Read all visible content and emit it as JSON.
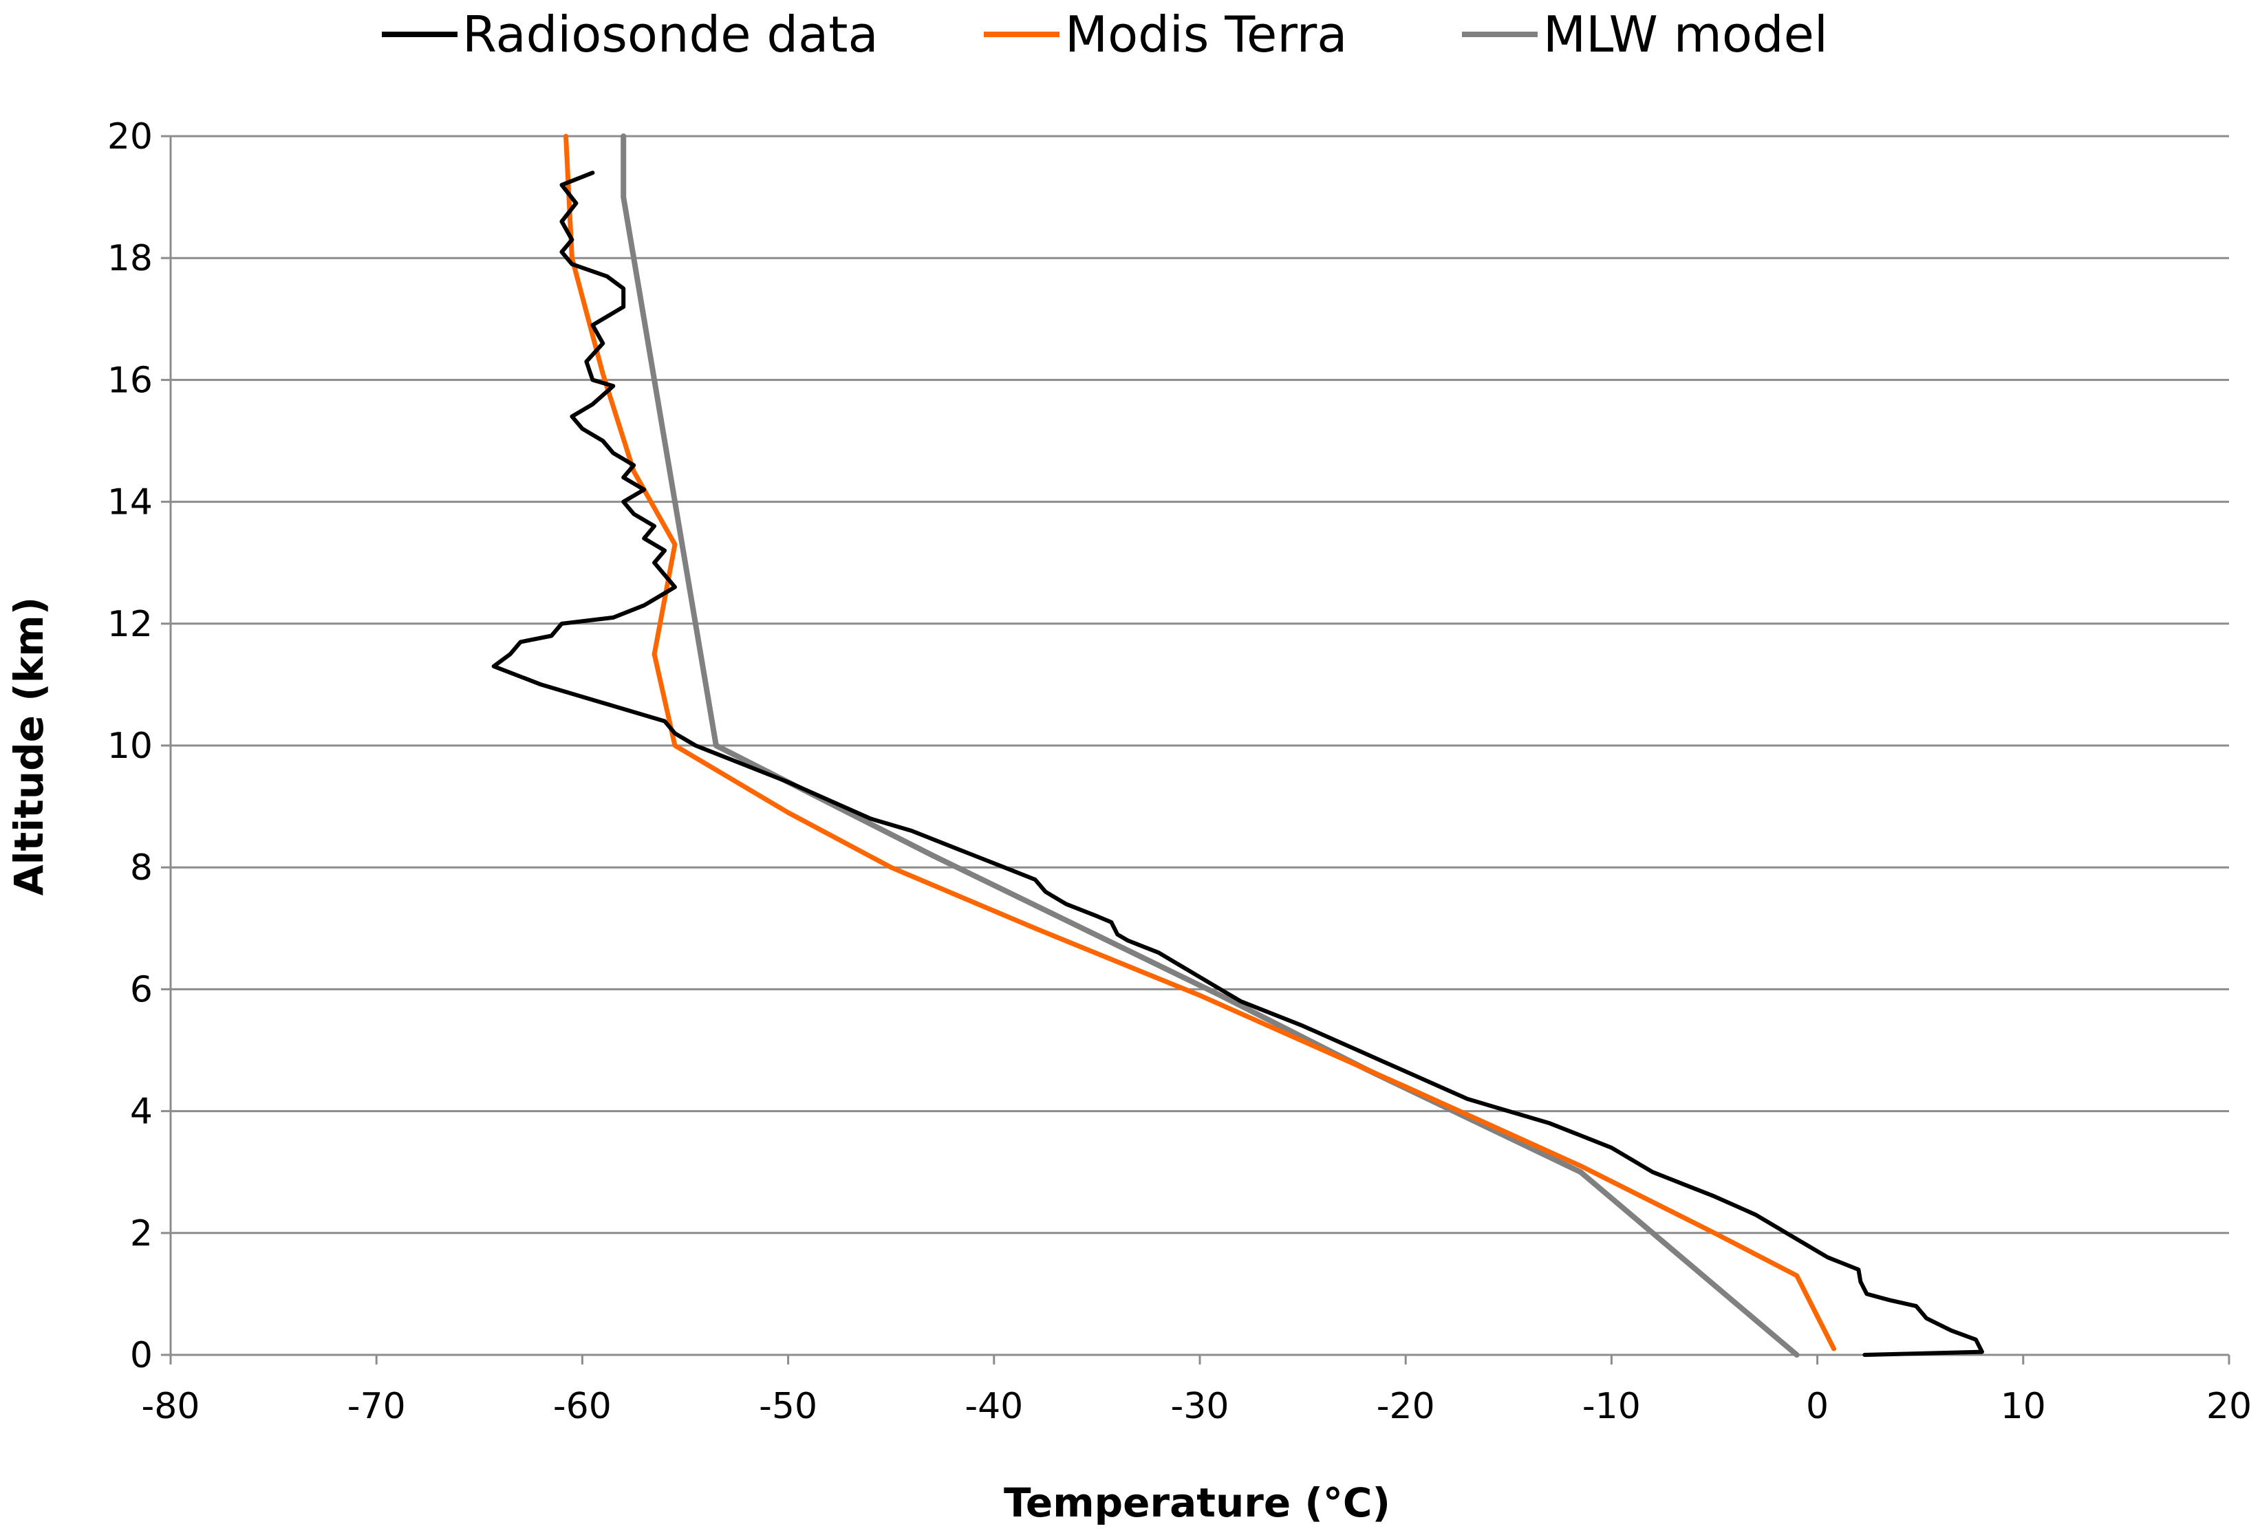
{
  "chart_data": {
    "type": "line",
    "title": "",
    "xlabel": "Temperature (°C)",
    "ylabel": "Altitude  (km)",
    "xlim": [
      -80,
      20
    ],
    "ylim": [
      0,
      20
    ],
    "x_ticks": [
      -80,
      -70,
      -60,
      -50,
      -40,
      -30,
      -20,
      -10,
      0,
      10,
      20
    ],
    "y_ticks": [
      0,
      2,
      4,
      6,
      8,
      10,
      12,
      14,
      16,
      18,
      20
    ],
    "grid": "horizontal",
    "legend_position": "top",
    "series": [
      {
        "name": "Radiosonde data",
        "color": "#000000",
        "points": [
          [
            2.3,
            0.0
          ],
          [
            8.0,
            0.05
          ],
          [
            7.7,
            0.25
          ],
          [
            6.5,
            0.4
          ],
          [
            5.3,
            0.6
          ],
          [
            4.8,
            0.8
          ],
          [
            3.5,
            0.9
          ],
          [
            2.4,
            1.0
          ],
          [
            2.1,
            1.2
          ],
          [
            2.0,
            1.4
          ],
          [
            0.5,
            1.6
          ],
          [
            -0.5,
            1.8
          ],
          [
            -1.5,
            2.0
          ],
          [
            -3.0,
            2.3
          ],
          [
            -5.0,
            2.6
          ],
          [
            -6.5,
            2.8
          ],
          [
            -8.0,
            3.0
          ],
          [
            -10.0,
            3.4
          ],
          [
            -11.5,
            3.6
          ],
          [
            -13.0,
            3.8
          ],
          [
            -15.0,
            4.0
          ],
          [
            -17.0,
            4.2
          ],
          [
            -19.0,
            4.5
          ],
          [
            -21.0,
            4.8
          ],
          [
            -23.0,
            5.1
          ],
          [
            -25.0,
            5.4
          ],
          [
            -26.5,
            5.6
          ],
          [
            -28.0,
            5.8
          ],
          [
            -29.0,
            6.0
          ],
          [
            -30.0,
            6.2
          ],
          [
            -31.0,
            6.4
          ],
          [
            -32.0,
            6.6
          ],
          [
            -33.5,
            6.8
          ],
          [
            -34.0,
            6.9
          ],
          [
            -34.3,
            7.1
          ],
          [
            -35.0,
            7.2
          ],
          [
            -36.5,
            7.4
          ],
          [
            -37.5,
            7.6
          ],
          [
            -38.0,
            7.8
          ],
          [
            -39.5,
            8.0
          ],
          [
            -41.0,
            8.2
          ],
          [
            -42.5,
            8.4
          ],
          [
            -44.0,
            8.6
          ],
          [
            -46.0,
            8.8
          ],
          [
            -48.0,
            9.1
          ],
          [
            -50.0,
            9.4
          ],
          [
            -53.0,
            9.8
          ],
          [
            -54.5,
            10.0
          ],
          [
            -55.5,
            10.2
          ],
          [
            -56.0,
            10.4
          ],
          [
            -57.0,
            10.5
          ],
          [
            -59.0,
            10.7
          ],
          [
            -62.0,
            11.0
          ],
          [
            -64.3,
            11.3
          ],
          [
            -63.5,
            11.5
          ],
          [
            -63.0,
            11.7
          ],
          [
            -61.5,
            11.8
          ],
          [
            -61.0,
            12.0
          ],
          [
            -58.5,
            12.1
          ],
          [
            -57.0,
            12.3
          ],
          [
            -56.0,
            12.5
          ],
          [
            -55.5,
            12.6
          ],
          [
            -56.0,
            12.8
          ],
          [
            -56.5,
            13.0
          ],
          [
            -56.0,
            13.2
          ],
          [
            -57.0,
            13.4
          ],
          [
            -56.5,
            13.6
          ],
          [
            -57.5,
            13.8
          ],
          [
            -58.0,
            14.0
          ],
          [
            -57.0,
            14.2
          ],
          [
            -58.0,
            14.4
          ],
          [
            -57.5,
            14.6
          ],
          [
            -58.5,
            14.8
          ],
          [
            -59.0,
            15.0
          ],
          [
            -60.0,
            15.2
          ],
          [
            -60.5,
            15.4
          ],
          [
            -59.5,
            15.6
          ],
          [
            -58.5,
            15.9
          ],
          [
            -59.5,
            16.0
          ],
          [
            -59.8,
            16.3
          ],
          [
            -59.0,
            16.6
          ],
          [
            -59.5,
            16.9
          ],
          [
            -58.0,
            17.2
          ],
          [
            -58.0,
            17.5
          ],
          [
            -58.8,
            17.7
          ],
          [
            -60.5,
            17.9
          ],
          [
            -61.0,
            18.1
          ],
          [
            -60.5,
            18.3
          ],
          [
            -61.0,
            18.6
          ],
          [
            -60.3,
            18.9
          ],
          [
            -61.0,
            19.2
          ],
          [
            -59.5,
            19.4
          ]
        ]
      },
      {
        "name": "Modis Terra",
        "color": "#ff6600",
        "points": [
          [
            0.8,
            0.1
          ],
          [
            -1.0,
            1.3
          ],
          [
            -5.0,
            2.0
          ],
          [
            -11.5,
            3.1
          ],
          [
            -20.0,
            4.4
          ],
          [
            -30.0,
            5.9
          ],
          [
            -38.0,
            7.0
          ],
          [
            -45.0,
            8.0
          ],
          [
            -50.0,
            8.9
          ],
          [
            -55.5,
            10.0
          ],
          [
            -56.5,
            11.5
          ],
          [
            -55.5,
            13.3
          ],
          [
            -57.5,
            14.5
          ],
          [
            -59.0,
            16.1
          ],
          [
            -60.5,
            18.0
          ],
          [
            -60.8,
            20.0
          ]
        ]
      },
      {
        "name": "MLW model",
        "color": "#808080",
        "points": [
          [
            -1.0,
            0.0
          ],
          [
            -11.5,
            3.0
          ],
          [
            -22.0,
            4.7
          ],
          [
            -29.0,
            5.9
          ],
          [
            -43.0,
            8.2
          ],
          [
            -53.5,
            10.0
          ],
          [
            -58.0,
            19.0
          ],
          [
            -58.0,
            20.0
          ]
        ]
      }
    ]
  }
}
